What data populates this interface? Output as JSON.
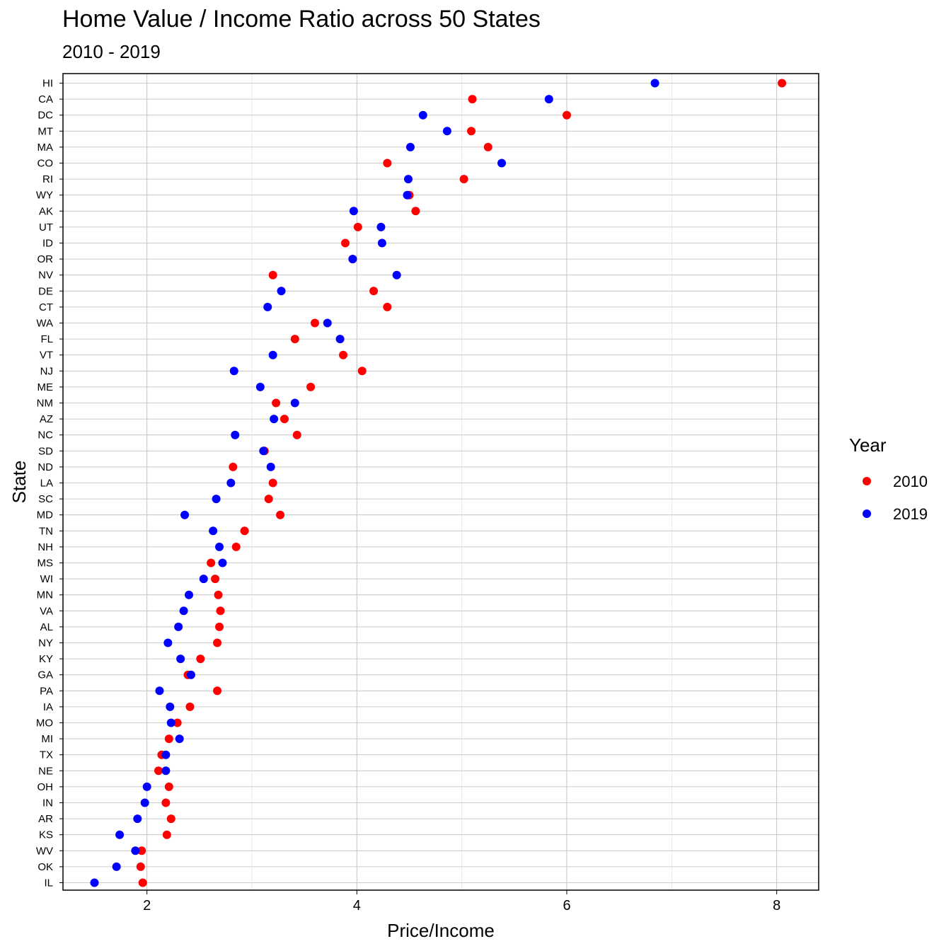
{
  "chart_data": {
    "type": "scatter",
    "title": "Home Value / Income Ratio across 50 States",
    "subtitle": "2010 - 2019",
    "xlabel": "Price/Income",
    "ylabel": "State",
    "xlim": [
      1.2,
      8.4
    ],
    "x_ticks": [
      2,
      4,
      6,
      8
    ],
    "grid": true,
    "legend_title": "Year",
    "legend_position": "right",
    "categories": [
      "HI",
      "CA",
      "DC",
      "MT",
      "MA",
      "CO",
      "RI",
      "WY",
      "AK",
      "UT",
      "ID",
      "OR",
      "NV",
      "DE",
      "CT",
      "WA",
      "FL",
      "VT",
      "NJ",
      "ME",
      "NM",
      "AZ",
      "NC",
      "SD",
      "ND",
      "LA",
      "SC",
      "MD",
      "TN",
      "NH",
      "MS",
      "WI",
      "MN",
      "VA",
      "AL",
      "NY",
      "KY",
      "GA",
      "PA",
      "IA",
      "MO",
      "MI",
      "TX",
      "NE",
      "OH",
      "IN",
      "AR",
      "KS",
      "WV",
      "OK",
      "IL"
    ],
    "series": [
      {
        "name": "2010",
        "color": "#ff0000",
        "values": [
          8.05,
          5.1,
          6.0,
          5.09,
          5.25,
          4.29,
          5.02,
          4.5,
          4.56,
          4.01,
          3.89,
          3.96,
          3.2,
          4.16,
          4.29,
          3.6,
          3.41,
          3.87,
          4.05,
          3.56,
          3.23,
          3.31,
          3.43,
          3.12,
          2.82,
          3.2,
          3.16,
          3.27,
          2.93,
          2.85,
          2.61,
          2.65,
          2.68,
          2.7,
          2.69,
          2.67,
          2.51,
          2.39,
          2.67,
          2.41,
          2.29,
          2.21,
          2.14,
          2.11,
          2.21,
          2.18,
          2.23,
          2.19,
          1.95,
          1.94,
          1.96
        ]
      },
      {
        "name": "2019",
        "color": "#0000ff",
        "values": [
          6.84,
          5.83,
          4.63,
          4.86,
          4.51,
          5.38,
          4.49,
          4.48,
          3.97,
          4.23,
          4.24,
          3.96,
          4.38,
          3.28,
          3.15,
          3.72,
          3.84,
          3.2,
          2.83,
          3.08,
          3.41,
          3.21,
          2.84,
          3.11,
          3.18,
          2.8,
          2.66,
          2.36,
          2.63,
          2.69,
          2.72,
          2.54,
          2.4,
          2.35,
          2.3,
          2.2,
          2.32,
          2.42,
          2.12,
          2.22,
          2.23,
          2.31,
          2.18,
          2.18,
          2.0,
          1.98,
          1.91,
          1.74,
          1.89,
          1.71,
          1.5
        ]
      }
    ]
  }
}
